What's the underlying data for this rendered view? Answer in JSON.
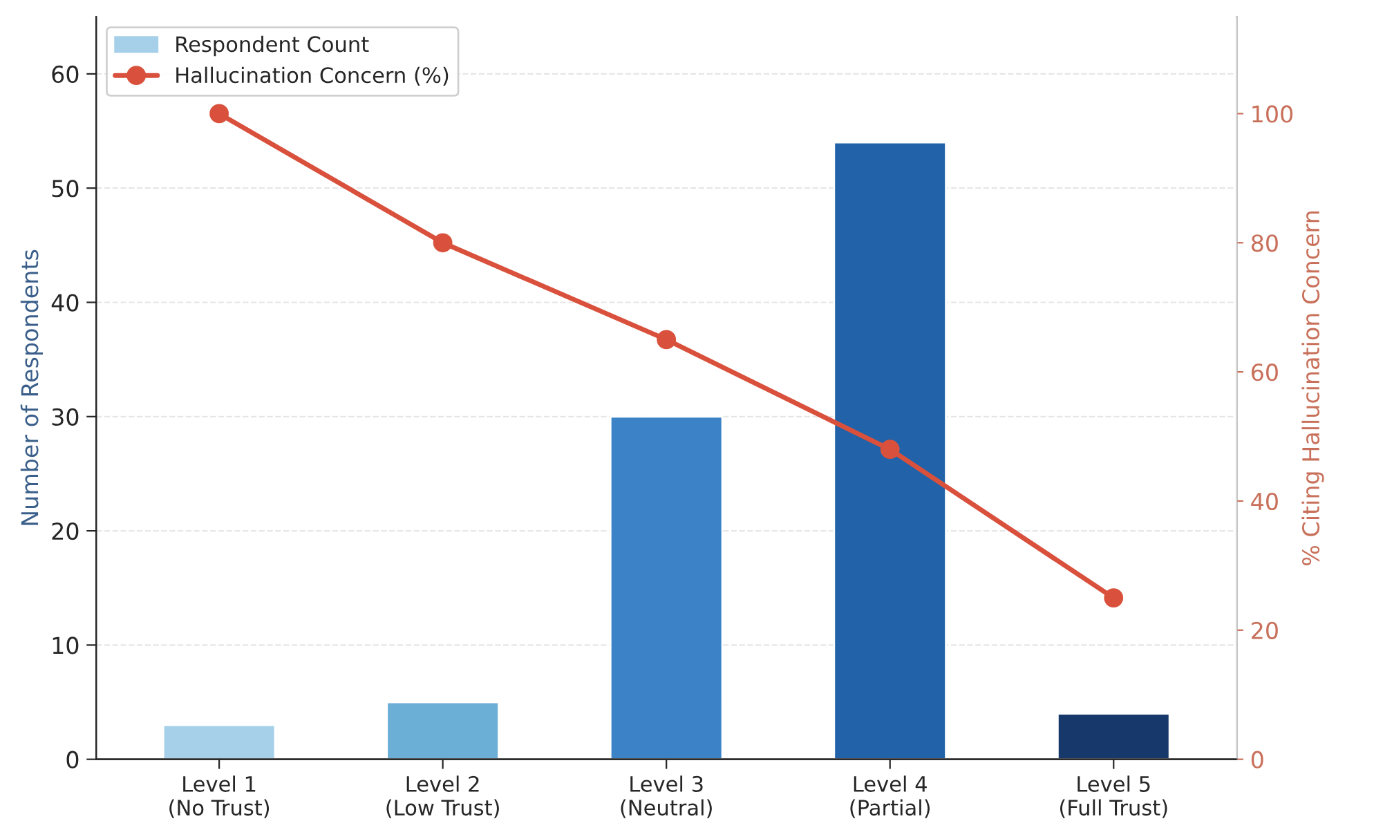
{
  "chart_data": {
    "type": "bar",
    "categories": [
      "Level 1\n(No Trust)",
      "Level 2\n(Low Trust)",
      "Level 3\n(Neutral)",
      "Level 4\n(Partial)",
      "Level 5\n(Full Trust)"
    ],
    "series": [
      {
        "name": "Respondent Count",
        "colors": [
          "#a6d0ea",
          "#6baed6",
          "#3b83c6",
          "#2162a8",
          "#17386b"
        ],
        "color": "#a6d0ea",
        "values": [
          3,
          5,
          30,
          54,
          4
        ]
      },
      {
        "name": "Hallucination Concern (%)",
        "type": "line",
        "axis": "y2",
        "color": "#d9513c",
        "values": [
          100,
          80,
          65,
          48,
          25
        ]
      }
    ],
    "ylabel": "Number of Respondents",
    "y2label": "% Citing Hallucination Concern",
    "ylim": [
      0,
      65
    ],
    "yticks": [
      0,
      10,
      20,
      30,
      40,
      50,
      60
    ],
    "y2lim": [
      0,
      115
    ],
    "y2ticks": [
      0,
      20,
      40,
      60,
      80,
      100
    ],
    "grid": "y",
    "legend": "top left",
    "marker": "circle",
    "line_style": "solid"
  }
}
